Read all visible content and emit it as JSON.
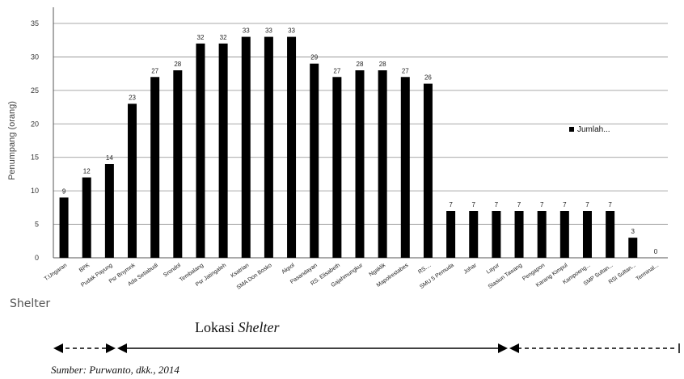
{
  "chart_data": {
    "type": "bar",
    "categories": [
      "T.Ungaran",
      "BPK",
      "Pudak Payung",
      "Psr Bnymnk",
      "Ada Setiabudi",
      "Srondol",
      "Tembalang",
      "Psr Jatingaleh",
      "Ksatrian",
      "SMA Don Bosko",
      "Akpol",
      "Pasandayan",
      "RS. Elisabeth",
      "Gajahmungkur",
      "Ngaklik",
      "Mapolrestabes",
      "RS....",
      "SMU 5 Pemuda",
      "Johar",
      "Layur",
      "Stasiun Tawang",
      "Pengapon",
      "Karang Kimpul",
      "Kampoeng...",
      "SMP Sultan...",
      "RSI Sultan...",
      "Terminal..."
    ],
    "series": [
      {
        "name": "Jumlah...",
        "values": [
          9,
          12,
          14,
          23,
          27,
          28,
          32,
          32,
          33,
          33,
          33,
          29,
          27,
          28,
          28,
          27,
          26,
          7,
          7,
          7,
          7,
          7,
          7,
          7,
          7,
          3,
          0
        ],
        "color": "#000000"
      }
    ],
    "xlabel": "Shelter",
    "ylabel": "Penumpang (orang)",
    "ylim": [
      0,
      35
    ],
    "yticks": [
      0,
      5,
      10,
      15,
      20,
      25,
      30,
      35
    ],
    "grid": true,
    "legend_position": "right"
  },
  "location_label_prefix": "Lokasi ",
  "location_label_italic": "Shelter",
  "source": "Sumber: Purwanto, dkk., 2014"
}
